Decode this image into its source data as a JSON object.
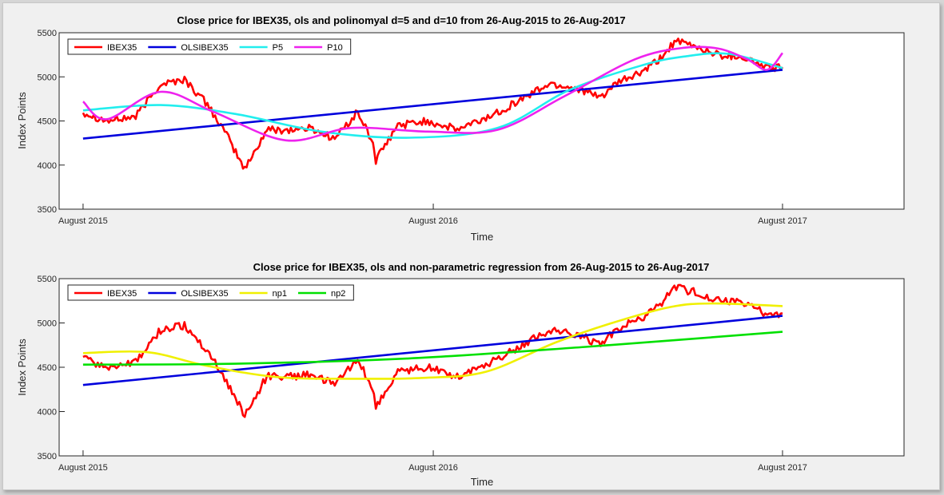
{
  "chart_data": [
    {
      "type": "line",
      "title": "Close price for IBEX35, ols and polinomyal d=5 and d=10 from 26-Aug-2015 to 26-Aug-2017",
      "xlabel": "Time",
      "ylabel": "Index Points",
      "x_ticks": [
        "August 2015",
        "August 2016",
        "August 2017"
      ],
      "xlim": [
        "2015-08-01",
        "2017-12-31"
      ],
      "ylim": [
        3500,
        5500
      ],
      "y_ticks": [
        3500,
        4000,
        4500,
        5000,
        5500
      ],
      "grid": false,
      "legend_position": "top-left",
      "legend_orientation": "horizontal",
      "colors": {
        "IBEX35": "#ff0000",
        "OLSIBEX35": "#0000dd",
        "P5": "#22eeee",
        "P10": "#ee22ee"
      },
      "series": [
        {
          "name": "IBEX35",
          "kind": "noisy",
          "x": [
            "2015-08-26",
            "2015-09-20",
            "2015-10-20",
            "2015-11-15",
            "2015-12-10",
            "2016-01-05",
            "2016-01-25",
            "2016-02-11",
            "2016-03-05",
            "2016-04-01",
            "2016-04-20",
            "2016-05-15",
            "2016-06-08",
            "2016-06-24",
            "2016-06-27",
            "2016-07-20",
            "2016-08-20",
            "2016-09-20",
            "2016-10-20",
            "2016-11-10",
            "2016-12-05",
            "2016-12-25",
            "2017-01-25",
            "2017-02-15",
            "2017-03-10",
            "2017-04-01",
            "2017-04-20",
            "2017-05-05",
            "2017-05-25",
            "2017-06-20",
            "2017-07-15",
            "2017-08-10",
            "2017-08-26"
          ],
          "y": [
            4600,
            4500,
            4550,
            4920,
            4970,
            4660,
            4300,
            3950,
            4400,
            4400,
            4420,
            4300,
            4600,
            4250,
            4050,
            4450,
            4500,
            4400,
            4530,
            4650,
            4800,
            4920,
            4870,
            4760,
            4950,
            5050,
            5200,
            5400,
            5350,
            5250,
            5230,
            5100,
            5110
          ]
        },
        {
          "name": "OLSIBEX35",
          "x": [
            "2015-08-26",
            "2017-08-26"
          ],
          "y": [
            4300,
            5080
          ]
        },
        {
          "name": "P5",
          "x": [
            "2015-08-26",
            "2015-11-15",
            "2016-02-01",
            "2016-05-01",
            "2016-08-01",
            "2016-11-01",
            "2017-01-15",
            "2017-04-01",
            "2017-05-15",
            "2017-07-01",
            "2017-08-26"
          ],
          "y": [
            4620,
            4680,
            4580,
            4380,
            4310,
            4420,
            4850,
            5130,
            5230,
            5260,
            5100
          ]
        },
        {
          "name": "P10",
          "x": [
            "2015-08-26",
            "2015-09-20",
            "2015-11-15",
            "2016-01-10",
            "2016-03-25",
            "2016-06-01",
            "2016-08-20",
            "2016-11-01",
            "2017-01-10",
            "2017-03-25",
            "2017-05-15",
            "2017-06-20",
            "2017-07-20",
            "2017-08-10",
            "2017-08-26"
          ],
          "y": [
            4720,
            4520,
            4830,
            4600,
            4280,
            4420,
            4380,
            4400,
            4780,
            5200,
            5330,
            5320,
            5200,
            5080,
            5270
          ]
        }
      ]
    },
    {
      "type": "line",
      "title": "Close price for IBEX35, ols and non-parametric regression from 26-Aug-2015 to 26-Aug-2017",
      "xlabel": "Time",
      "ylabel": "Index Points",
      "x_ticks": [
        "August 2015",
        "August 2016",
        "August 2017"
      ],
      "xlim": [
        "2015-08-01",
        "2017-12-31"
      ],
      "ylim": [
        3500,
        5500
      ],
      "y_ticks": [
        3500,
        4000,
        4500,
        5000,
        5500
      ],
      "grid": false,
      "legend_position": "top-left",
      "legend_orientation": "horizontal",
      "colors": {
        "IBEX35": "#ff0000",
        "OLSIBEX35": "#0000dd",
        "np1": "#f0f000",
        "np2": "#00e000"
      },
      "series": [
        {
          "name": "IBEX35",
          "kind": "noisy",
          "x": [
            "2015-08-26",
            "2015-09-20",
            "2015-10-20",
            "2015-11-15",
            "2015-12-10",
            "2016-01-05",
            "2016-01-25",
            "2016-02-11",
            "2016-03-05",
            "2016-04-01",
            "2016-04-20",
            "2016-05-15",
            "2016-06-08",
            "2016-06-24",
            "2016-06-27",
            "2016-07-20",
            "2016-08-20",
            "2016-09-20",
            "2016-10-20",
            "2016-11-10",
            "2016-12-05",
            "2016-12-25",
            "2017-01-25",
            "2017-02-15",
            "2017-03-10",
            "2017-04-01",
            "2017-04-20",
            "2017-05-05",
            "2017-05-25",
            "2017-06-20",
            "2017-07-15",
            "2017-08-10",
            "2017-08-26"
          ],
          "y": [
            4600,
            4500,
            4550,
            4920,
            4970,
            4660,
            4300,
            3950,
            4400,
            4400,
            4420,
            4300,
            4600,
            4250,
            4050,
            4450,
            4500,
            4400,
            4530,
            4650,
            4800,
            4920,
            4870,
            4760,
            4950,
            5050,
            5200,
            5400,
            5350,
            5250,
            5230,
            5100,
            5110
          ]
        },
        {
          "name": "OLSIBEX35",
          "x": [
            "2015-08-26",
            "2017-08-26"
          ],
          "y": [
            4300,
            5080
          ]
        },
        {
          "name": "np1",
          "x": [
            "2015-08-26",
            "2015-11-01",
            "2016-01-01",
            "2016-03-15",
            "2016-06-01",
            "2016-08-15",
            "2016-10-20",
            "2017-01-01",
            "2017-03-01",
            "2017-05-01",
            "2017-06-15",
            "2017-08-26"
          ],
          "y": [
            4660,
            4670,
            4520,
            4390,
            4370,
            4380,
            4450,
            4780,
            5000,
            5180,
            5220,
            5190
          ]
        },
        {
          "name": "np2",
          "x": [
            "2015-08-26",
            "2016-02-01",
            "2016-08-01",
            "2017-02-01",
            "2017-08-26"
          ],
          "y": [
            4530,
            4540,
            4600,
            4730,
            4900
          ]
        }
      ]
    }
  ]
}
